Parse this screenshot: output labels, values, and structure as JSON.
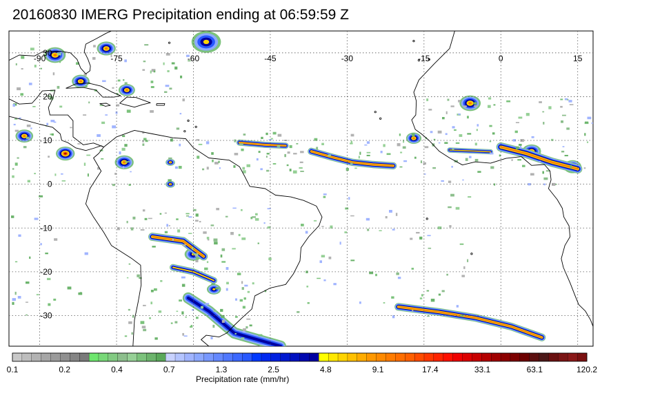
{
  "title": "20160830 IMERG Precipitation ending at 06:59:59 Z",
  "map": {
    "lon_range": [
      -96,
      18
    ],
    "lat_range": [
      -37,
      35
    ],
    "lon_ticks": [
      -90,
      -75,
      -60,
      -45,
      -30,
      -15,
      0,
      15
    ],
    "lat_ticks": [
      30,
      20,
      10,
      0,
      -10,
      -20,
      -30
    ],
    "gridlines": "dotted"
  },
  "colorbar": {
    "title": "Precipitation rate (mm/hr)",
    "tick_labels": [
      "0.1",
      "0.2",
      "0.4",
      "0.7",
      "1.3",
      "2.5",
      "4.8",
      "9.1",
      "17.4",
      "33.1",
      "63.1",
      "120.2"
    ],
    "colors": [
      "#c8c8c8",
      "#bdbdbd",
      "#b2b2b2",
      "#a6a6a6",
      "#9b9b9b",
      "#909090",
      "#858585",
      "#7a7a7a",
      "#6ee66e",
      "#78d878",
      "#82ca82",
      "#8cbe8c",
      "#96d096",
      "#7cc27c",
      "#6cb46c",
      "#5aa85a",
      "#c8d2ff",
      "#b4c4ff",
      "#a0b4ff",
      "#8ca8ff",
      "#7898ff",
      "#6488ff",
      "#5078ff",
      "#3c68ff",
      "#2858ff",
      "#0038ff",
      "#0028f0",
      "#0020e0",
      "#0018d0",
      "#0010c0",
      "#0008b0",
      "#0000a0",
      "#ffff00",
      "#ffe800",
      "#ffd400",
      "#ffc000",
      "#ffac00",
      "#ff9800",
      "#ff8a00",
      "#ff7c00",
      "#ff6e00",
      "#ff6000",
      "#ff4c00",
      "#ff3800",
      "#ff2400",
      "#ff1000",
      "#f00000",
      "#dc0000",
      "#c80000",
      "#b40000",
      "#a00000",
      "#8c0000",
      "#7c0000",
      "#6c0000",
      "#5c1010",
      "#4c1818",
      "#6a1010",
      "#7a1414",
      "#8a1818",
      "#7a1010"
    ]
  },
  "precip_cells": [
    {
      "lon": -57.5,
      "lat": 32.5,
      "r": 2.5,
      "max": "yellow"
    },
    {
      "lon": -87.0,
      "lat": 29.5,
      "r": 1.8,
      "max": "orange"
    },
    {
      "lon": -77.0,
      "lat": 31.0,
      "r": 1.6,
      "max": "orange"
    },
    {
      "lon": -82.0,
      "lat": 23.5,
      "r": 1.5,
      "max": "orange"
    },
    {
      "lon": -73.0,
      "lat": 21.5,
      "r": 1.4,
      "max": "orange"
    },
    {
      "lon": -93.0,
      "lat": 11.0,
      "r": 1.5,
      "max": "orange"
    },
    {
      "lon": -85.0,
      "lat": 7.0,
      "r": 1.6,
      "max": "red"
    },
    {
      "lon": -73.5,
      "lat": 5.0,
      "r": 1.6,
      "max": "orange"
    },
    {
      "lon": -64.5,
      "lat": 5.0,
      "r": 0.8,
      "max": "orange"
    },
    {
      "lon": -64.5,
      "lat": 0.0,
      "r": 0.8,
      "max": "orange"
    },
    {
      "lon": -17.0,
      "lat": 10.5,
      "r": 1.3,
      "max": "orange"
    },
    {
      "lon": -6.0,
      "lat": 18.5,
      "r": 1.8,
      "max": "orange"
    },
    {
      "lon": 6.0,
      "lat": 7.5,
      "r": 1.6,
      "max": "orange"
    },
    {
      "lon": 14.0,
      "lat": 4.0,
      "r": 1.5,
      "max": "orange"
    },
    {
      "lon": -60.0,
      "lat": -16.0,
      "r": 1.5,
      "max": "yellow"
    },
    {
      "lon": -56.0,
      "lat": -24.0,
      "r": 1.2,
      "max": "yellow"
    }
  ],
  "precip_bands": [
    {
      "points": [
        [
          -51,
          9.5
        ],
        [
          -46,
          9
        ],
        [
          -42,
          8.8
        ]
      ],
      "w": 1.2,
      "max": "orange"
    },
    {
      "points": [
        [
          -37,
          7.5
        ],
        [
          -33,
          6.2
        ],
        [
          -29,
          5
        ],
        [
          -25,
          4.5
        ],
        [
          -21,
          4.2
        ]
      ],
      "w": 1.4,
      "max": "orange"
    },
    {
      "points": [
        [
          -10,
          7.8
        ],
        [
          -6,
          7.6
        ],
        [
          -2,
          7.4
        ]
      ],
      "w": 1.0,
      "max": "yellow"
    },
    {
      "points": [
        [
          0,
          8.5
        ],
        [
          5,
          7
        ],
        [
          10,
          5
        ],
        [
          15,
          3.5
        ]
      ],
      "w": 1.8,
      "max": "orange"
    },
    {
      "points": [
        [
          -68,
          -12
        ],
        [
          -62,
          -13
        ],
        [
          -58,
          -16.5
        ]
      ],
      "w": 1.6,
      "max": "orange"
    },
    {
      "points": [
        [
          -64,
          -19
        ],
        [
          -60,
          -20
        ],
        [
          -56,
          -22
        ]
      ],
      "w": 1.3,
      "max": "yellow"
    },
    {
      "points": [
        [
          -61,
          -26
        ],
        [
          -57,
          -29
        ],
        [
          -52,
          -34
        ],
        [
          -43,
          -37
        ]
      ],
      "w": 2.2,
      "max": "blue"
    },
    {
      "points": [
        [
          -20,
          -28
        ],
        [
          -12,
          -29.2
        ],
        [
          -5,
          -30.5
        ],
        [
          2,
          -32.5
        ],
        [
          8,
          -35
        ]
      ],
      "w": 1.5,
      "max": "orange"
    }
  ],
  "scatter_seeds": {
    "count": 520,
    "seed": 7
  }
}
